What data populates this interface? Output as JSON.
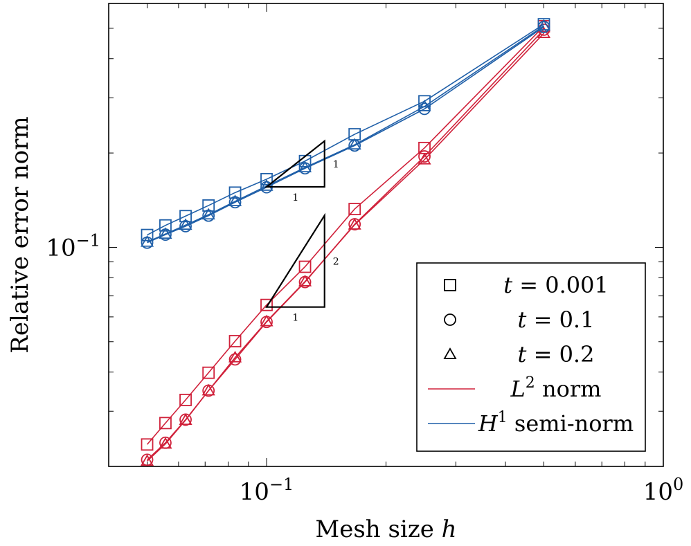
{
  "chart_data": {
    "type": "line",
    "xscale": "log",
    "yscale": "log",
    "xlabel": "Mesh size",
    "xlabel_var": "h",
    "ylabel": "Relative error norm",
    "xlim": [
      0.04,
      1.0
    ],
    "ylim": [
      0.02,
      0.6
    ],
    "x_tick_labels": [
      {
        "value": 0.1,
        "base": "10",
        "exp": "−1"
      },
      {
        "value": 1.0,
        "base": "10",
        "exp": "0"
      }
    ],
    "y_tick_labels": [
      {
        "value": 0.1,
        "base": "10",
        "exp": "−1"
      }
    ],
    "grid": false,
    "legend_position": "bottom-right",
    "x": [
      0.05,
      0.0556,
      0.0625,
      0.0714,
      0.0833,
      0.1,
      0.125,
      0.1667,
      0.25,
      0.5
    ],
    "series": [
      {
        "norm": "L2",
        "time": "t = 0.001",
        "marker": "square",
        "color": "#d0213a",
        "values": [
          0.0235,
          0.0275,
          0.0326,
          0.0398,
          0.0502,
          0.0655,
          0.0867,
          0.1325,
          0.2075,
          0.5075
        ]
      },
      {
        "norm": "L2",
        "time": "t = 0.1",
        "marker": "circle",
        "color": "#d0213a",
        "values": [
          0.021,
          0.0238,
          0.0282,
          0.0349,
          0.0439,
          0.0578,
          0.0775,
          0.1185,
          0.195,
          0.495
        ]
      },
      {
        "norm": "L2",
        "time": "t = 0.2",
        "marker": "triangle",
        "color": "#d0213a",
        "values": [
          0.0208,
          0.0236,
          0.0281,
          0.0349,
          0.0445,
          0.058,
          0.0778,
          0.118,
          0.1905,
          0.482
        ]
      },
      {
        "norm": "H1",
        "time": "t = 0.001",
        "marker": "square",
        "color": "#1f5fa8",
        "values": [
          0.1095,
          0.1175,
          0.1258,
          0.136,
          0.1495,
          0.165,
          0.1885,
          0.2295,
          0.2925,
          0.515
        ]
      },
      {
        "norm": "H1",
        "time": "t = 0.1",
        "marker": "circle",
        "color": "#1f5fa8",
        "values": [
          0.1035,
          0.1098,
          0.1168,
          0.1262,
          0.1393,
          0.1555,
          0.1787,
          0.2112,
          0.2765,
          0.505
        ]
      },
      {
        "norm": "H1",
        "time": "t = 0.2",
        "marker": "triangle",
        "color": "#1f5fa8",
        "values": [
          0.104,
          0.1103,
          0.1178,
          0.1271,
          0.1402,
          0.1569,
          0.1797,
          0.2125,
          0.2815,
          0.509
        ]
      }
    ],
    "slope_triangles": [
      {
        "x0": 0.1,
        "x1": 0.14,
        "y0": 0.156,
        "slope": 1,
        "run_label": "1",
        "rise_label": "1"
      },
      {
        "x0": 0.1,
        "x1": 0.14,
        "y0": 0.0645,
        "slope": 2,
        "run_label": "1",
        "rise_label": "2"
      }
    ],
    "legend": [
      {
        "kind": "marker",
        "marker": "square",
        "text_var": "t",
        "text_rest": " = 0.001"
      },
      {
        "kind": "marker",
        "marker": "circle",
        "text_var": "t",
        "text_rest": " = 0.1"
      },
      {
        "kind": "marker",
        "marker": "triangle",
        "text_var": "t",
        "text_rest": " = 0.2"
      },
      {
        "kind": "line",
        "color": "#d0213a",
        "text_var": "L",
        "text_sup": "2",
        "text_rest": " norm"
      },
      {
        "kind": "line",
        "color": "#1f5fa8",
        "text_var": "H",
        "text_sup": "1",
        "text_rest": " semi-norm"
      }
    ]
  }
}
